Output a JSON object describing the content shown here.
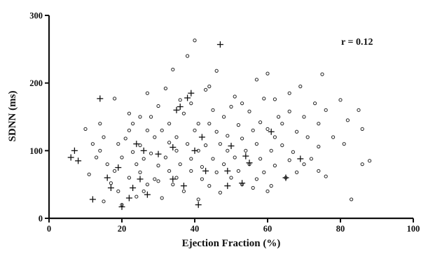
{
  "chart_data": {
    "type": "scatter",
    "xlabel": "Ejection Fraction (%)",
    "ylabel": "SDNN (ms)",
    "xlim": [
      0,
      100
    ],
    "ylim": [
      0,
      300
    ],
    "x_ticks": [
      0,
      20,
      40,
      60,
      80,
      100
    ],
    "y_ticks": [
      0,
      100,
      200,
      300
    ],
    "grid": false,
    "legend": "none",
    "annotation": "r = 0.12",
    "series": [
      {
        "marker": "circle",
        "points": [
          [
            40,
            263
          ],
          [
            38,
            240
          ],
          [
            34,
            220
          ],
          [
            46,
            218
          ],
          [
            60,
            214
          ],
          [
            75,
            213
          ],
          [
            57,
            205
          ],
          [
            69,
            195
          ],
          [
            32,
            192
          ],
          [
            43,
            190
          ],
          [
            59,
            177
          ],
          [
            62,
            176
          ],
          [
            80,
            175
          ],
          [
            18,
            177
          ],
          [
            36,
            175
          ],
          [
            30,
            166
          ],
          [
            50,
            165
          ],
          [
            55,
            158
          ],
          [
            66,
            158
          ],
          [
            76,
            160
          ],
          [
            85,
            160
          ],
          [
            22,
            155
          ],
          [
            37,
            155
          ],
          [
            25,
            150
          ],
          [
            28,
            150
          ],
          [
            48,
            150
          ],
          [
            63,
            150
          ],
          [
            70,
            150
          ],
          [
            82,
            145
          ],
          [
            14,
            140
          ],
          [
            33,
            140
          ],
          [
            41,
            140
          ],
          [
            44,
            140
          ],
          [
            52,
            138
          ],
          [
            58,
            142
          ],
          [
            74,
            140
          ],
          [
            10,
            132
          ],
          [
            22,
            130
          ],
          [
            27,
            130
          ],
          [
            31,
            130
          ],
          [
            40,
            130
          ],
          [
            46,
            128
          ],
          [
            56,
            130
          ],
          [
            60,
            132
          ],
          [
            68,
            128
          ],
          [
            78,
            120
          ],
          [
            86,
            132
          ],
          [
            15,
            120
          ],
          [
            21,
            118
          ],
          [
            29,
            120
          ],
          [
            35,
            120
          ],
          [
            49,
            122
          ],
          [
            53,
            118
          ],
          [
            62,
            120
          ],
          [
            71,
            120
          ],
          [
            81,
            110
          ],
          [
            12,
            110
          ],
          [
            19,
            110
          ],
          [
            25,
            108
          ],
          [
            33,
            112
          ],
          [
            38,
            110
          ],
          [
            43,
            108
          ],
          [
            47,
            110
          ],
          [
            57,
            110
          ],
          [
            64,
            108
          ],
          [
            74,
            106
          ],
          [
            14,
            100
          ],
          [
            23,
            98
          ],
          [
            28,
            96
          ],
          [
            35,
            100
          ],
          [
            41,
            100
          ],
          [
            49,
            100
          ],
          [
            54,
            100
          ],
          [
            61,
            100
          ],
          [
            67,
            98
          ],
          [
            13,
            90
          ],
          [
            20,
            90
          ],
          [
            26,
            88
          ],
          [
            32,
            90
          ],
          [
            39,
            88
          ],
          [
            45,
            88
          ],
          [
            51,
            90
          ],
          [
            58,
            88
          ],
          [
            66,
            86
          ],
          [
            72,
            88
          ],
          [
            16,
            80
          ],
          [
            24,
            80
          ],
          [
            30,
            78
          ],
          [
            36,
            80
          ],
          [
            42,
            76
          ],
          [
            48,
            80
          ],
          [
            55,
            80
          ],
          [
            62,
            78
          ],
          [
            70,
            80
          ],
          [
            86,
            80
          ],
          [
            18,
            70
          ],
          [
            25,
            68
          ],
          [
            33,
            70
          ],
          [
            39,
            70
          ],
          [
            46,
            68
          ],
          [
            52,
            70
          ],
          [
            59,
            68
          ],
          [
            68,
            68
          ],
          [
            74,
            70
          ],
          [
            11,
            65
          ],
          [
            22,
            60
          ],
          [
            29,
            58
          ],
          [
            35,
            60
          ],
          [
            42,
            58
          ],
          [
            50,
            60
          ],
          [
            57,
            58
          ],
          [
            65,
            60
          ],
          [
            76,
            62
          ],
          [
            17,
            52
          ],
          [
            27,
            50
          ],
          [
            34,
            50
          ],
          [
            44,
            48
          ],
          [
            53,
            50
          ],
          [
            61,
            48
          ],
          [
            19,
            40
          ],
          [
            26,
            40
          ],
          [
            37,
            40
          ],
          [
            47,
            38
          ],
          [
            60,
            40
          ],
          [
            24,
            32
          ],
          [
            31,
            30
          ],
          [
            41,
            28
          ],
          [
            15,
            25
          ],
          [
            83,
            28
          ],
          [
            20,
            20
          ],
          [
            27,
            185
          ],
          [
            44,
            195
          ],
          [
            51,
            180
          ],
          [
            39,
            170
          ],
          [
            53,
            170
          ],
          [
            66,
            185
          ],
          [
            23,
            140
          ],
          [
            45,
            160
          ],
          [
            64,
            140
          ],
          [
            73,
            170
          ],
          [
            88,
            85
          ],
          [
            30,
            55
          ],
          [
            56,
            45
          ]
        ]
      },
      {
        "marker": "plus",
        "points": [
          [
            47,
            257
          ],
          [
            14,
            177
          ],
          [
            35,
            160
          ],
          [
            36,
            165
          ],
          [
            38,
            178
          ],
          [
            39,
            185
          ],
          [
            24,
            110
          ],
          [
            30,
            95
          ],
          [
            26,
            100
          ],
          [
            34,
            105
          ],
          [
            40,
            100
          ],
          [
            42,
            120
          ],
          [
            50,
            107
          ],
          [
            54,
            92
          ],
          [
            61,
            128
          ],
          [
            7,
            100
          ],
          [
            8,
            85
          ],
          [
            6,
            90
          ],
          [
            16,
            60
          ],
          [
            17,
            45
          ],
          [
            19,
            75
          ],
          [
            25,
            58
          ],
          [
            23,
            45
          ],
          [
            27,
            35
          ],
          [
            37,
            48
          ],
          [
            43,
            70
          ],
          [
            49,
            70
          ],
          [
            49,
            48
          ],
          [
            53,
            52
          ],
          [
            55,
            82
          ],
          [
            65,
            60
          ],
          [
            69,
            88
          ],
          [
            12,
            28
          ],
          [
            22,
            30
          ],
          [
            34,
            58
          ],
          [
            41,
            20
          ],
          [
            20,
            17
          ]
        ]
      }
    ]
  }
}
